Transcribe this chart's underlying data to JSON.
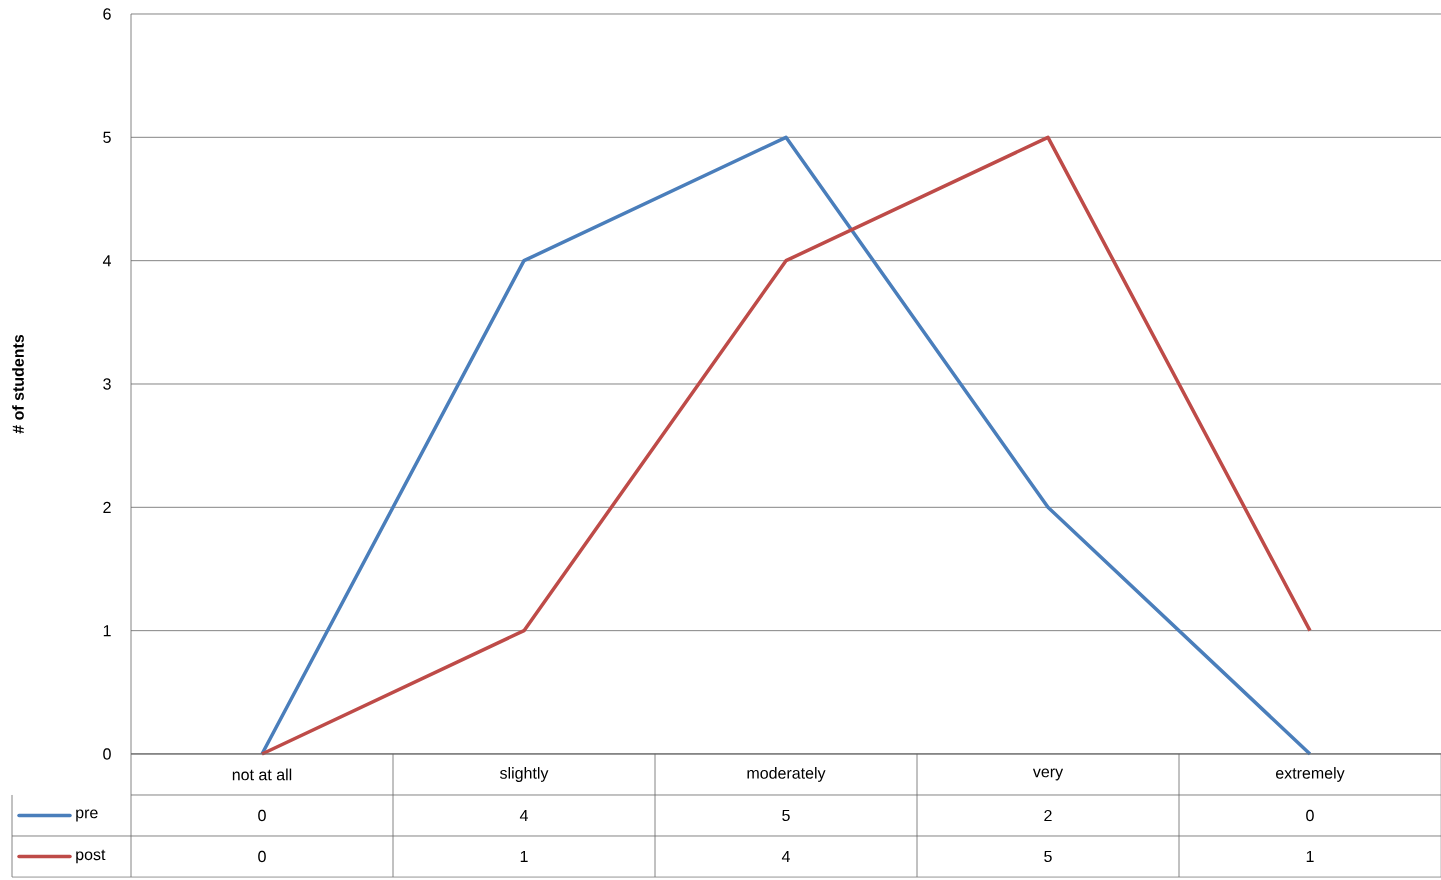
{
  "chart_data": {
    "type": "line",
    "ylabel": "# of students",
    "categories": [
      "not at all",
      "slightly",
      "moderately",
      "very",
      "extremely"
    ],
    "series": [
      {
        "name": "pre",
        "color": "#4a7ebb",
        "values": [
          0,
          4,
          5,
          2,
          0
        ]
      },
      {
        "name": "post",
        "color": "#be4b48",
        "values": [
          0,
          1,
          4,
          5,
          1
        ]
      }
    ],
    "ylim": [
      0,
      6
    ],
    "yticks": [
      0,
      1,
      2,
      3,
      4,
      5,
      6
    ],
    "grid": "y",
    "data_labels": true,
    "legend": "bottom",
    "marker": "none",
    "line_style": "solid"
  }
}
